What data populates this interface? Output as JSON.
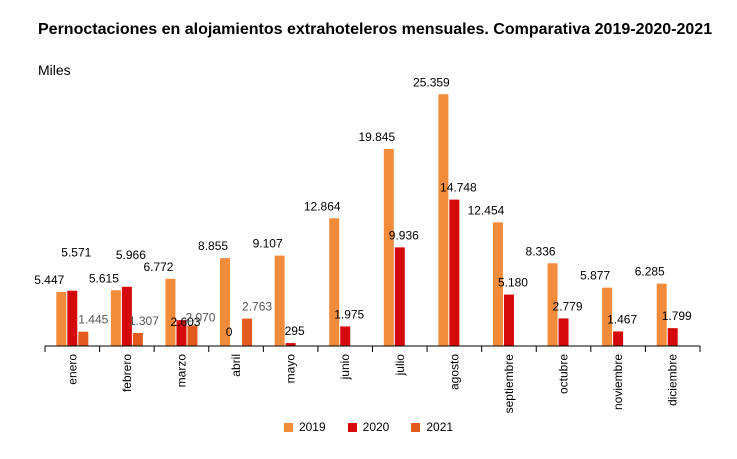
{
  "chart_data": {
    "type": "bar",
    "title": "Pernoctaciones en alojamientos extrahoteleros mensuales. Comparativa 2019-2020-2021",
    "subtitle": "Miles",
    "categories": [
      "enero",
      "febrero",
      "marzo",
      "abril",
      "mayo",
      "junio",
      "julio",
      "agosto",
      "septiembre",
      "octubre",
      "noviembre",
      "diciembre"
    ],
    "series": [
      {
        "name": "2019",
        "color": "#F28C3A",
        "values": [
          5447,
          5615,
          6772,
          8855,
          9107,
          12864,
          19845,
          25359,
          12454,
          8336,
          5877,
          6285
        ],
        "labels": [
          "5.447",
          "5.615",
          "6.772",
          "8.855",
          "9.107",
          "12.864",
          "19.845",
          "25.359",
          "12.454",
          "8.336",
          "5.877",
          "6.285"
        ]
      },
      {
        "name": "2020",
        "color": "#D40A0A",
        "values": [
          5571,
          5966,
          2603,
          0,
          295,
          1975,
          9936,
          14748,
          5180,
          2779,
          1467,
          1799
        ],
        "labels": [
          "5.571",
          "5.966",
          "2.603",
          "0",
          "295",
          "1.975",
          "9.936",
          "14.748",
          "5.180",
          "2.779",
          "1.467",
          "1.799"
        ]
      },
      {
        "name": "2021",
        "color": "#E25A1E",
        "values": [
          1445,
          1307,
          2070,
          2763,
          null,
          null,
          null,
          null,
          null,
          null,
          null,
          null
        ],
        "labels": [
          "1.445",
          "1.307",
          "2.070",
          "2.763",
          null,
          null,
          null,
          null,
          null,
          null,
          null,
          null
        ]
      }
    ],
    "ylim": [
      0,
      27000
    ],
    "grid": false,
    "legend_position": "bottom"
  }
}
